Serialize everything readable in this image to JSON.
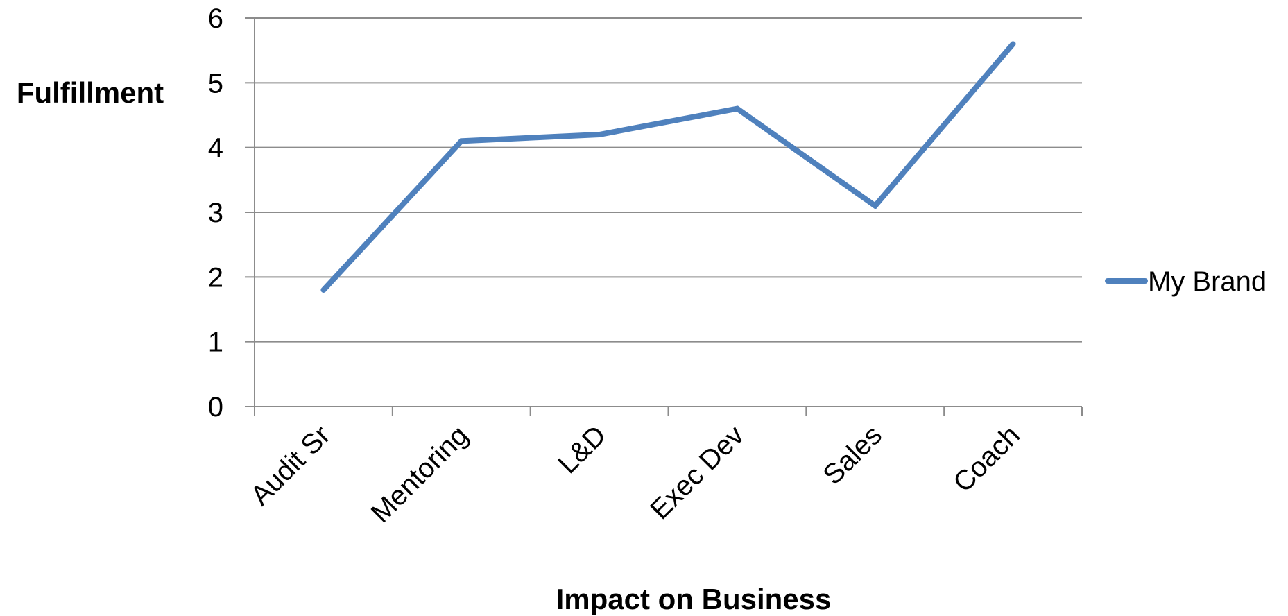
{
  "chart_data": {
    "type": "line",
    "categories": [
      "Audit Sr",
      "Mentoring",
      "L&D",
      "Exec Dev",
      "Sales",
      "Coach"
    ],
    "series": [
      {
        "name": "My Brand",
        "values": [
          1.8,
          4.1,
          4.2,
          4.6,
          3.1,
          5.6
        ],
        "color": "#4f81bd"
      }
    ],
    "ylabel": "Fulfillment",
    "xlabel": "Impact on Business",
    "ylim": [
      0,
      6
    ],
    "yticks": [
      "0",
      "1",
      "2",
      "3",
      "4",
      "5",
      "6"
    ],
    "grid": true,
    "legend": "right"
  }
}
